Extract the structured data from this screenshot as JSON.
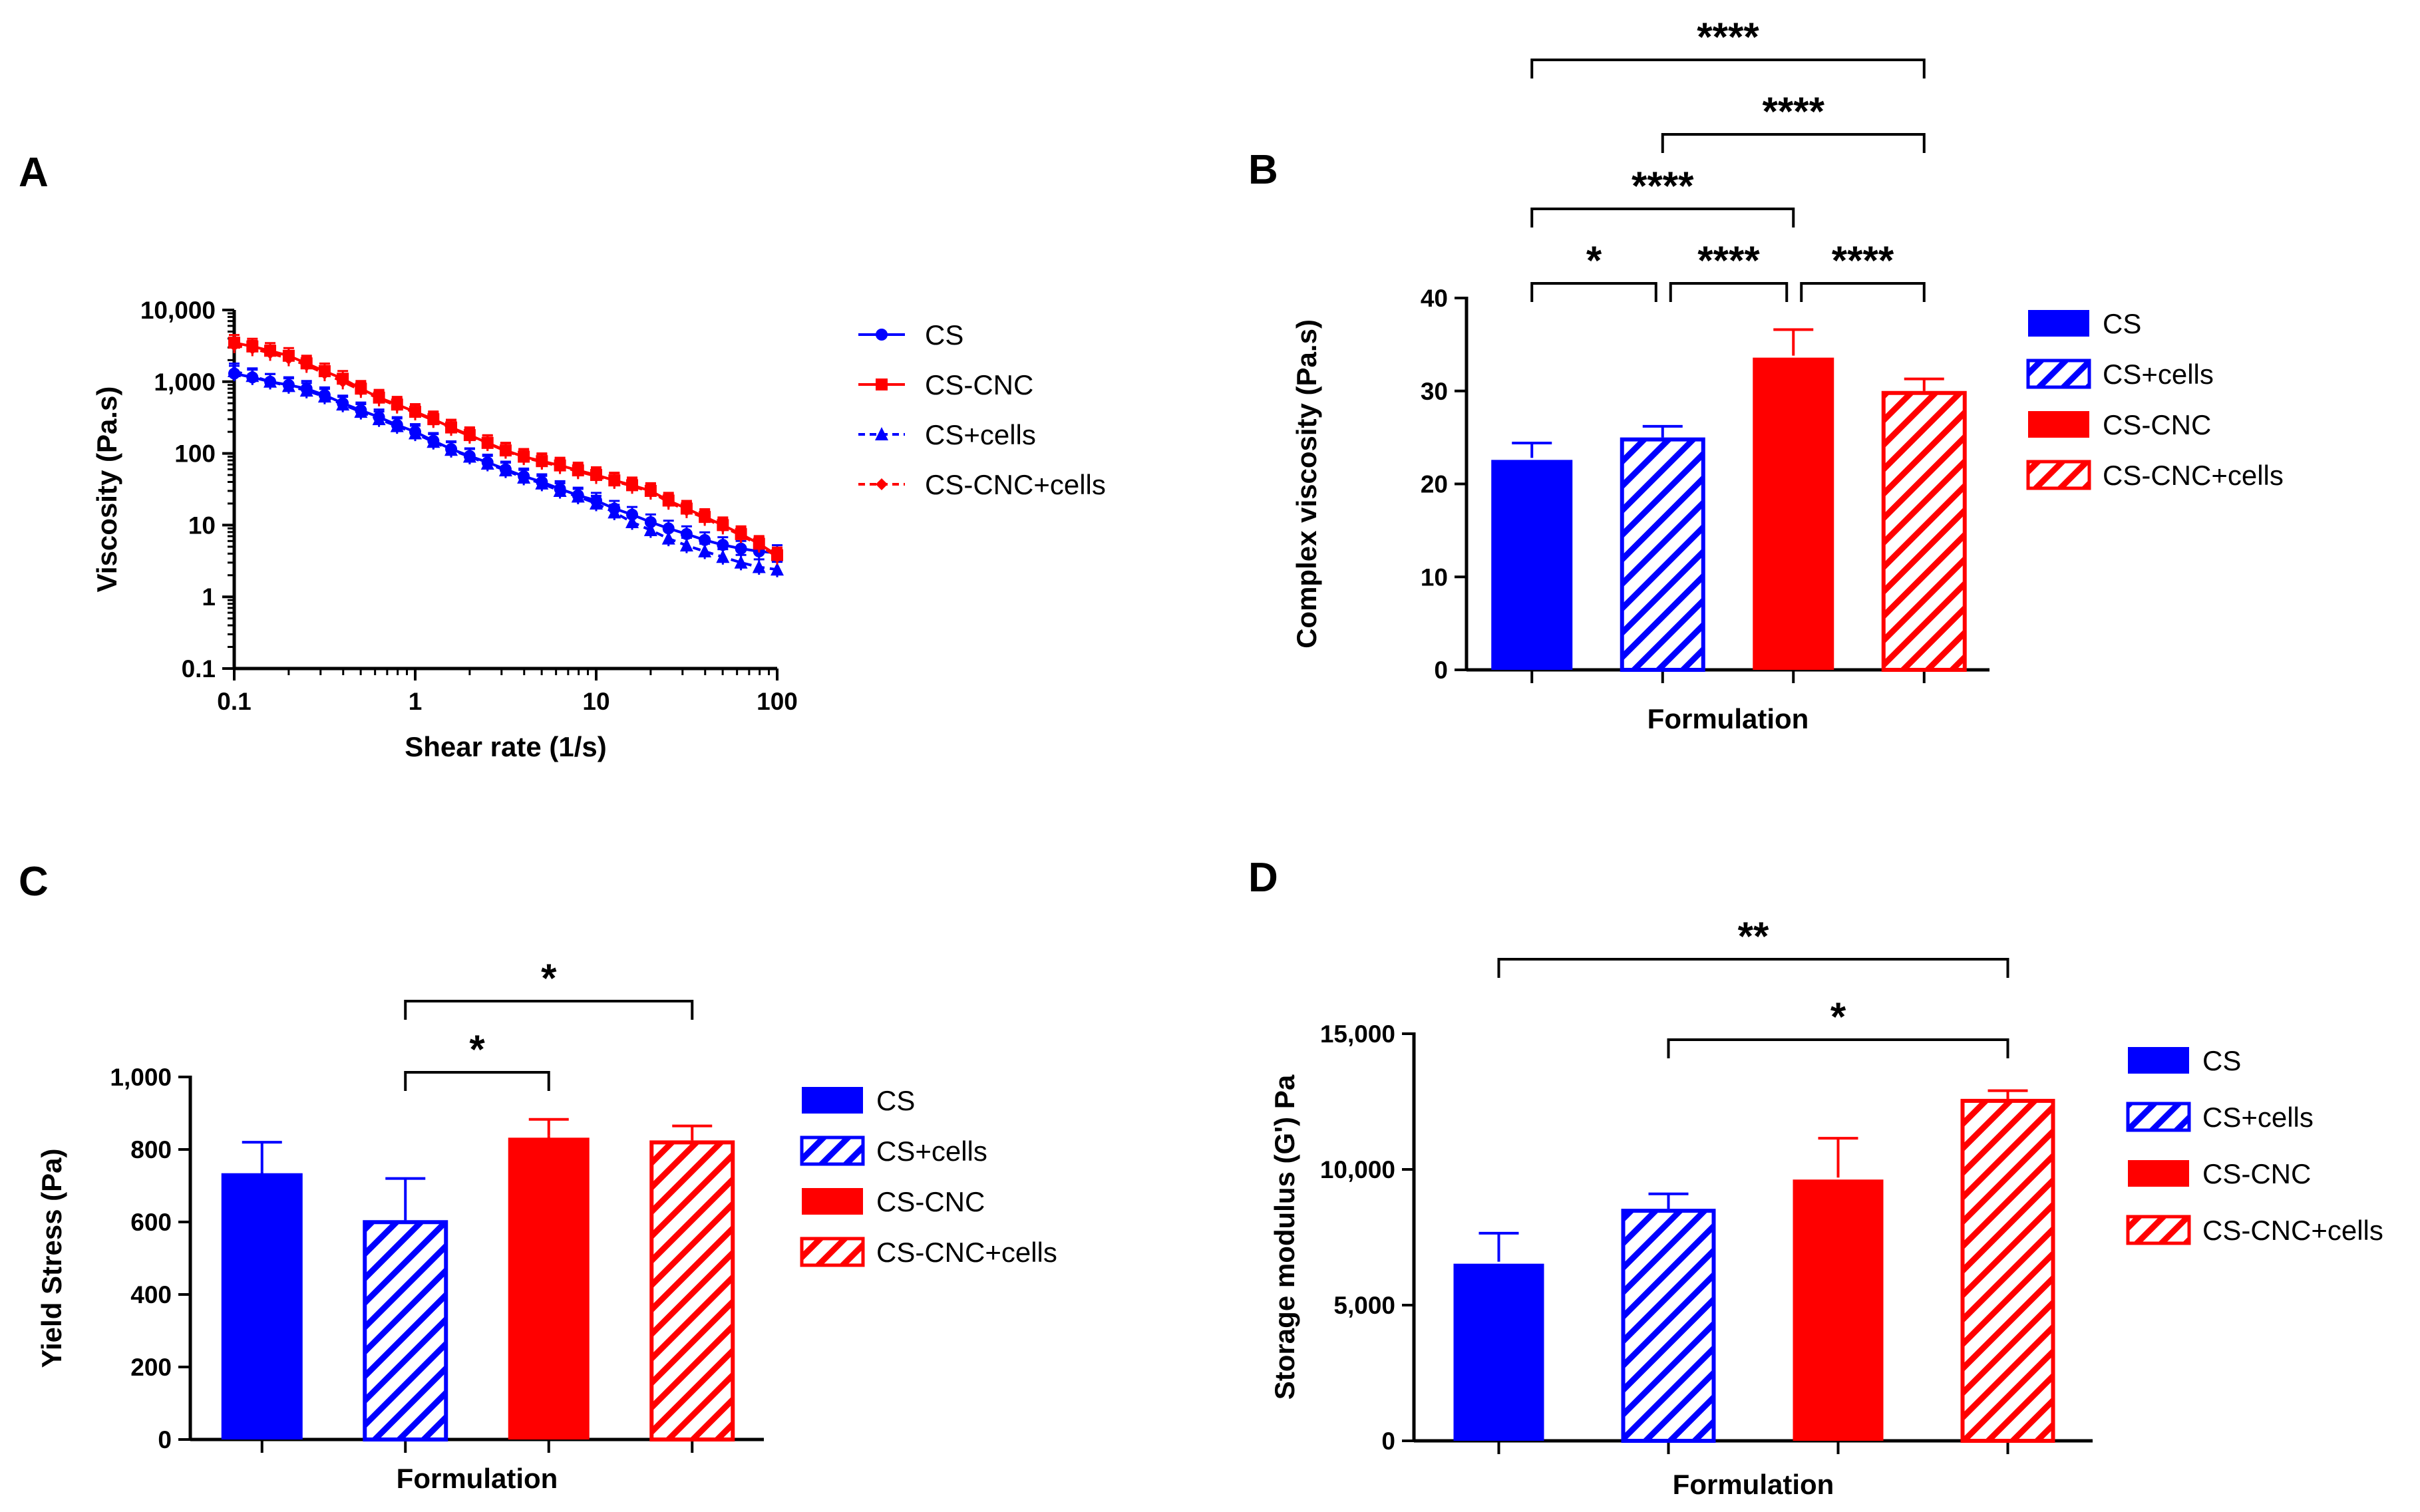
{
  "colors": {
    "blue": "#0000FF",
    "red": "#FF0000",
    "black": "#000000"
  },
  "legend_labels": [
    "CS",
    "CS+cells",
    "CS-CNC",
    "CS-CNC+cells"
  ],
  "chart_data": [
    {
      "panel": "A",
      "type": "line",
      "xlabel": "Shear rate (1/s)",
      "ylabel": "Viscosity (Pa.s)",
      "xscale": "log",
      "yscale": "log",
      "xlim": [
        0.1,
        100
      ],
      "ylim": [
        0.1,
        10000
      ],
      "xticks": [
        "0.1",
        "1",
        "10",
        "100"
      ],
      "yticks": [
        "0.1",
        "1",
        "10",
        "100",
        "1,000",
        "10,000"
      ],
      "legend_order": [
        "CS",
        "CS-CNC",
        "CS+cells",
        "CS-CNC+cells"
      ],
      "legend_position": "right",
      "x": [
        0.1,
        0.126,
        0.158,
        0.2,
        0.251,
        0.316,
        0.398,
        0.501,
        0.631,
        0.794,
        1,
        1.26,
        1.58,
        2,
        2.51,
        3.16,
        3.98,
        5.01,
        6.31,
        7.94,
        10,
        12.6,
        15.8,
        20,
        25.1,
        31.6,
        39.8,
        50.1,
        63.1,
        79.4,
        100
      ],
      "series": [
        {
          "name": "CS",
          "color": "#0000FF",
          "marker": "circle",
          "line": "solid",
          "values": [
            1300,
            1150,
            1000,
            900,
            800,
            650,
            500,
            400,
            320,
            250,
            200,
            150,
            115,
            92,
            75,
            60,
            48,
            40,
            32,
            26,
            22,
            17,
            14,
            11,
            9,
            7.5,
            6.2,
            5.3,
            4.7,
            4.3,
            4.1
          ]
        },
        {
          "name": "CS-CNC",
          "color": "#FF0000",
          "marker": "square",
          "line": "solid",
          "values": [
            3500,
            3100,
            2700,
            2300,
            1800,
            1400,
            1100,
            800,
            600,
            480,
            380,
            300,
            230,
            180,
            140,
            110,
            90,
            78,
            68,
            58,
            50,
            42,
            36,
            30,
            22,
            17,
            13,
            10,
            7.5,
            5.5,
            3.8
          ]
        },
        {
          "name": "CS+cells",
          "color": "#0000FF",
          "marker": "triangle",
          "line": "dashed",
          "values": [
            1400,
            1200,
            1000,
            870,
            750,
            620,
            480,
            380,
            300,
            240,
            190,
            145,
            112,
            90,
            72,
            58,
            46,
            38,
            30,
            25,
            20,
            15,
            11,
            8.5,
            6.5,
            5.2,
            4.3,
            3.6,
            3.0,
            2.6,
            2.4
          ]
        },
        {
          "name": "CS-CNC+cells",
          "color": "#FF0000",
          "marker": "diamond",
          "line": "dashed",
          "values": [
            3200,
            2900,
            2500,
            2100,
            1700,
            1300,
            1000,
            760,
            580,
            460,
            370,
            290,
            225,
            175,
            138,
            108,
            88,
            76,
            66,
            56,
            48,
            41,
            35,
            29,
            21,
            16,
            12.5,
            9.5,
            7.2,
            5.3,
            3.6
          ]
        }
      ]
    },
    {
      "panel": "B",
      "type": "bar",
      "xlabel": "Formulation",
      "ylabel": "Complex viscosity (Pa.s)",
      "ylim": [
        0,
        40
      ],
      "yticks": [
        "0",
        "10",
        "20",
        "30",
        "40"
      ],
      "categories": [
        "CS",
        "CS+cells",
        "CS-CNC",
        "CS-CNC+cells"
      ],
      "values": [
        22.8,
        25.0,
        33.8,
        30.0
      ],
      "errors": [
        1.6,
        1.2,
        2.8,
        1.3
      ],
      "significance": [
        {
          "from": 0,
          "to": 3,
          "label": "****"
        },
        {
          "from": 1,
          "to": 3,
          "label": "****"
        },
        {
          "from": 0,
          "to": 2,
          "label": "****"
        },
        {
          "from": 0,
          "to": 1,
          "label": "*"
        },
        {
          "from": 1,
          "to": 2,
          "label": "****"
        },
        {
          "from": 2,
          "to": 3,
          "label": "****"
        }
      ]
    },
    {
      "panel": "C",
      "type": "bar",
      "xlabel": "Formulation",
      "ylabel": "Yield Stress (Pa)",
      "ylim": [
        0,
        1000
      ],
      "yticks": [
        "0",
        "200",
        "400",
        "600",
        "800",
        "1,000"
      ],
      "categories": [
        "CS",
        "CS+cells",
        "CS-CNC",
        "CS-CNC+cells"
      ],
      "values": [
        740,
        605,
        838,
        825
      ],
      "errors": [
        80,
        115,
        45,
        40
      ],
      "significance": [
        {
          "from": 1,
          "to": 3,
          "label": "*"
        },
        {
          "from": 1,
          "to": 2,
          "label": "*"
        }
      ]
    },
    {
      "panel": "D",
      "type": "bar",
      "xlabel": "Formulation",
      "ylabel": "Storage modulus (G') Pa",
      "ylim": [
        0,
        15000
      ],
      "yticks": [
        "0",
        "5,000",
        "10,000",
        "15,000"
      ],
      "categories": [
        "CS",
        "CS+cells",
        "CS-CNC",
        "CS-CNC+cells"
      ],
      "values": [
        6600,
        8550,
        9700,
        12600
      ],
      "errors": [
        1050,
        550,
        1450,
        300
      ],
      "significance": [
        {
          "from": 0,
          "to": 3,
          "label": "**"
        },
        {
          "from": 1,
          "to": 3,
          "label": "*"
        }
      ]
    }
  ]
}
